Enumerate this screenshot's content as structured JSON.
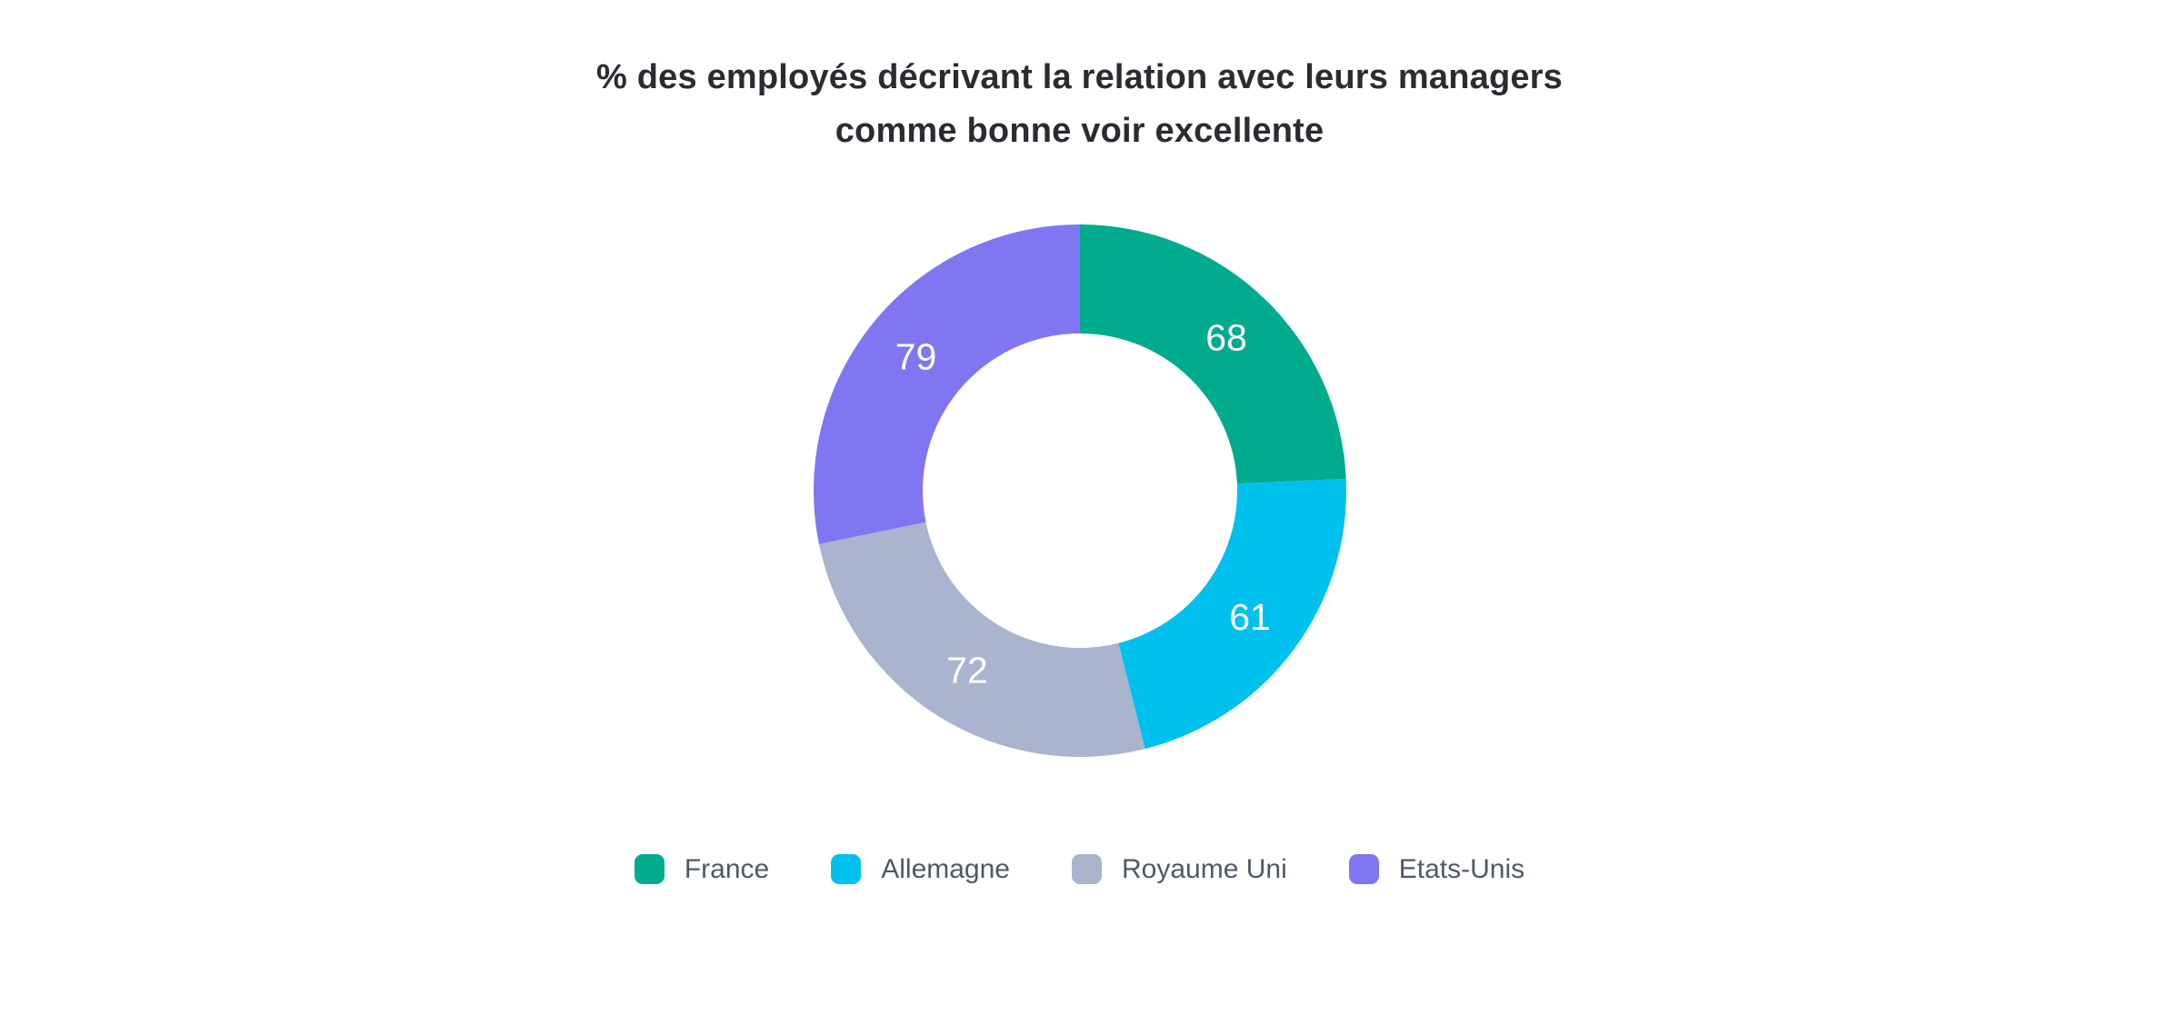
{
  "page": {
    "background_color": "#FFFFFF"
  },
  "chart_data": {
    "type": "pie",
    "donut": true,
    "title": "% des employés décrivant la relation avec leurs managers comme bonne voir excellente",
    "title_lines": [
      "% des employés décrivant la relation avec leurs managers",
      "comme bonne voir excellente"
    ],
    "categories": [
      "France",
      "Allemagne",
      "Royaume Uni",
      "Etats-Unis"
    ],
    "values": [
      68,
      61,
      72,
      79
    ],
    "colors": [
      "#00AB8E",
      "#00C0EE",
      "#A9B4CF",
      "#8076F1"
    ],
    "value_labels": [
      "68",
      "61",
      "72",
      "79"
    ],
    "value_label_color": "#FFFFFF",
    "start_angle_deg": 0,
    "direction": "clockwise",
    "inner_radius_ratio": 0.59,
    "legend_position": "bottom",
    "title_color": "#292C31",
    "legend_text_color": "#4F5965"
  }
}
